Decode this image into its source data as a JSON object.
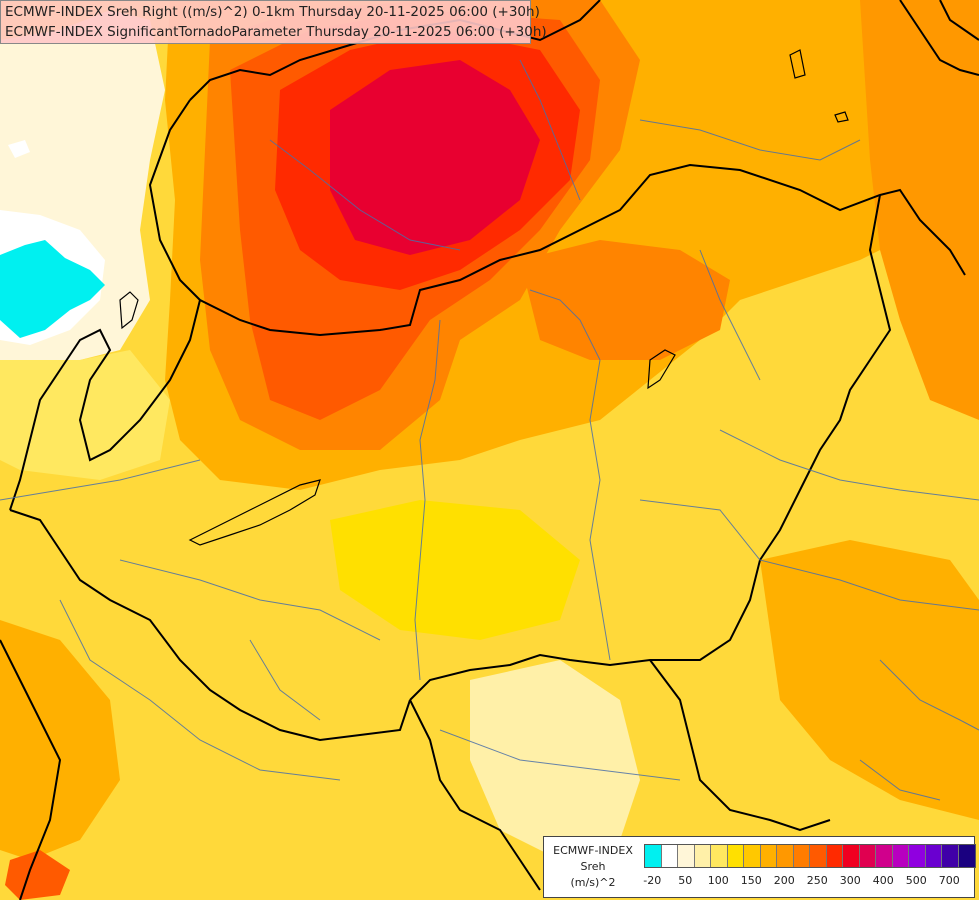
{
  "title": {
    "line1": "ECMWF-INDEX Sreh Right ((m/s)^2) 0-1km Thursday 20-11-2025 06:00 (+30h)",
    "line2": "ECMWF-INDEX SignificantTornadoParameter Thursday 20-11-2025 06:00 (+30h)"
  },
  "legend": {
    "caption_lines": [
      "ECMWF-INDEX",
      "Sreh",
      "(m/s)^2"
    ],
    "colors": [
      "#00f0f0",
      "#ffffff",
      "#fff6d8",
      "#fff0a8",
      "#ffe860",
      "#ffe000",
      "#ffc800",
      "#ffb000",
      "#ff9800",
      "#ff7c00",
      "#ff5a00",
      "#ff2a00",
      "#f00020",
      "#e00050",
      "#d0008c",
      "#b800c0",
      "#9000e0",
      "#6a00d0",
      "#4000a8",
      "#1a0080"
    ],
    "ticks": [
      {
        "label": "-20",
        "index": 0.5
      },
      {
        "label": "50",
        "index": 2.5
      },
      {
        "label": "100",
        "index": 4.5
      },
      {
        "label": "150",
        "index": 6.5
      },
      {
        "label": "200",
        "index": 8.5
      },
      {
        "label": "250",
        "index": 10.5
      },
      {
        "label": "300",
        "index": 12.5
      },
      {
        "label": "400",
        "index": 14.5
      },
      {
        "label": "500",
        "index": 16.5
      },
      {
        "label": "700",
        "index": 18.5
      }
    ]
  }
}
